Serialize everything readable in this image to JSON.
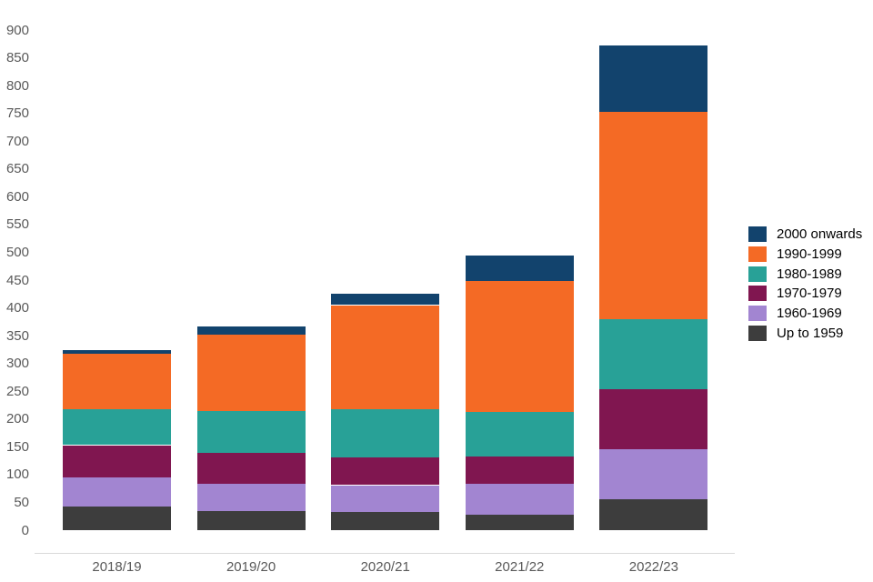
{
  "chart_data": {
    "type": "bar",
    "stacked": true,
    "title": "",
    "xlabel": "",
    "ylabel": "",
    "categories": [
      "2018/19",
      "2019/20",
      "2020/21",
      "2021/22",
      "2022/23"
    ],
    "series": [
      {
        "name": "Up to 1959",
        "color": "#3D3D3D",
        "values": [
          43,
          35,
          33,
          28,
          56
        ]
      },
      {
        "name": "1960-1969",
        "color": "#A285D1",
        "values": [
          52,
          49,
          48,
          56,
          90
        ]
      },
      {
        "name": "1970-1979",
        "color": "#801650",
        "values": [
          58,
          55,
          50,
          49,
          107
        ]
      },
      {
        "name": "1980-1989",
        "color": "#28A197",
        "values": [
          65,
          75,
          86,
          80,
          127
        ]
      },
      {
        "name": "1990-1999",
        "color": "#F46A25",
        "values": [
          99,
          138,
          188,
          236,
          373
        ]
      },
      {
        "name": "2000 onwards",
        "color": "#12436D",
        "values": [
          7,
          15,
          21,
          46,
          119
        ]
      }
    ],
    "ylim": [
      0,
      900
    ],
    "ytick_step": 50,
    "yticks": [
      "0",
      "50",
      "100",
      "150",
      "200",
      "250",
      "300",
      "350",
      "400",
      "450",
      "500",
      "550",
      "600",
      "650",
      "700",
      "750",
      "800",
      "850",
      "900"
    ],
    "grid": "off",
    "legend_position": "right",
    "legend_order_top_to_bottom": [
      "2000 onwards",
      "1990-1999",
      "1980-1989",
      "1970-1979",
      "1960-1969",
      "Up to 1959"
    ]
  },
  "colors": {
    "background": "#ffffff",
    "axis_line": "#d9d9d9",
    "tick_label": "#595959",
    "legend_text": "#000000"
  }
}
